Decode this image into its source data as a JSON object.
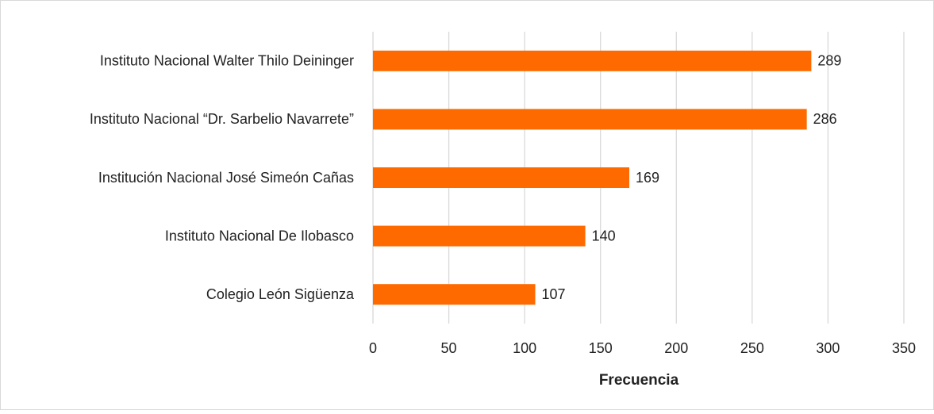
{
  "chart_data": {
    "type": "barh",
    "categories": [
      "Instituto Nacional Walter Thilo Deininger",
      "Instituto Nacional “Dr. Sarbelio Navarrete”",
      "Institución Nacional José Simeón Cañas",
      "Instituto Nacional De Ilobasco",
      "Colegio León Sigüenza"
    ],
    "values": [
      289,
      286,
      169,
      140,
      107
    ],
    "color": "#ff6a00",
    "xlabel": "Frecuencia",
    "xlim": [
      0,
      350
    ],
    "xticks": [
      0,
      50,
      100,
      150,
      200,
      250,
      300,
      350
    ],
    "grid": true
  }
}
